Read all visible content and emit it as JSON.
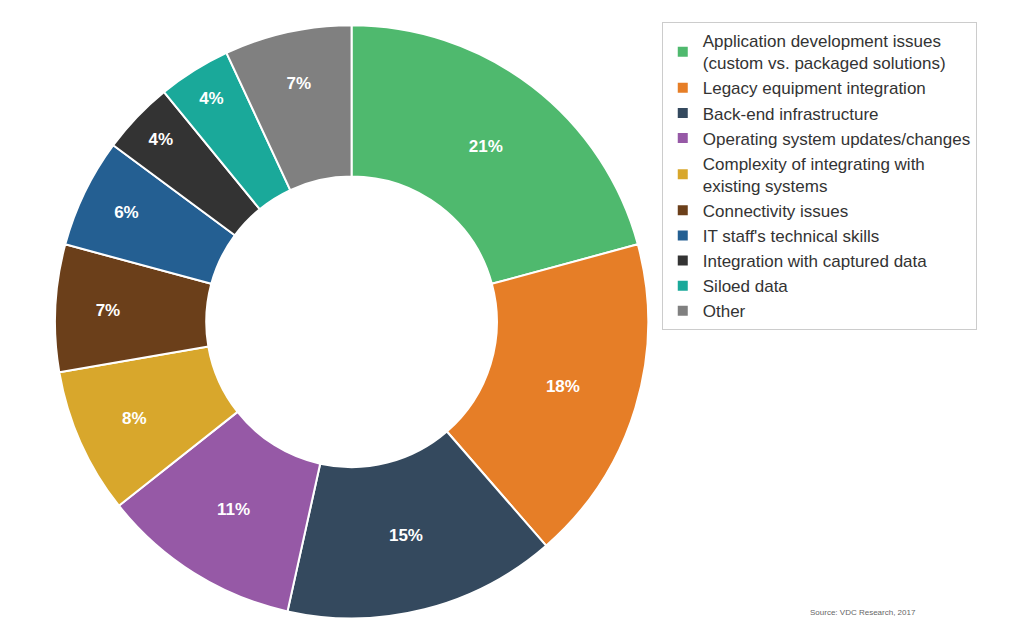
{
  "chart_data": {
    "type": "pie",
    "categories": [
      "Application development issues\n(custom vs. packaged solutions)",
      "Legacy equipment integration",
      "Back-end infrastructure",
      "Operating system updates/changes",
      "Complexity of integrating with\nexisting systems",
      "Connectivity issues",
      "IT staff's technical skills",
      "Integration with captured data",
      "Siloed data",
      "Other"
    ],
    "values": [
      21,
      18,
      15,
      11,
      8,
      7,
      6,
      4,
      4,
      7
    ],
    "value_labels": [
      "21%",
      "18%",
      "15%",
      "11%",
      "8%",
      "7%",
      "6%",
      "4%",
      "4%",
      "7%"
    ],
    "colors": [
      "#4fb96e",
      "#e67e27",
      "#34495e",
      "#9659a6",
      "#d8a72c",
      "#6b3f1a",
      "#245f92",
      "#333333",
      "#1aa99a",
      "#808080"
    ],
    "data_labels": true,
    "legend": "right",
    "annotations": [
      "Source: VDC Research, 2017"
    ]
  }
}
